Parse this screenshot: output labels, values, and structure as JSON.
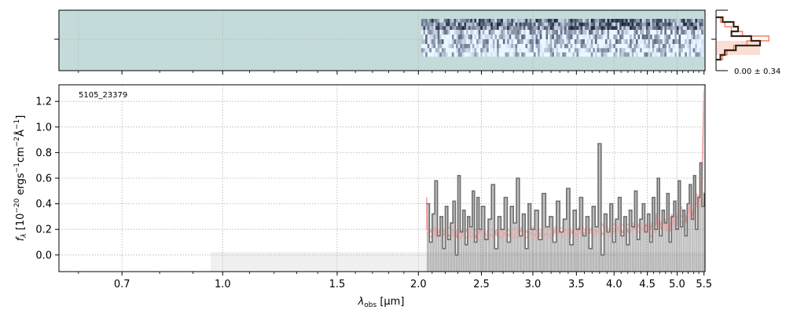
{
  "chart_data": [
    {
      "type": "heatmap",
      "panel": "2d-spectrum",
      "colormap": "bone_r",
      "background_color": "#c4dbdb",
      "data_start_x": 2.02,
      "x_range": [
        0.56,
        5.52
      ]
    },
    {
      "type": "histogram",
      "panel": "pixel-histogram",
      "annotation": "0.00 ± 0.34",
      "colors": {
        "data": "#3a241a",
        "model": "#f08060"
      }
    },
    {
      "type": "line",
      "panel": "1d-spectrum",
      "object_label": "5105_23379",
      "xlabel_main": "λ",
      "xlabel_sub": "obs",
      "xlabel_unit": " [μm]",
      "ylabel": "f_λ [10^-20 ergs^-1 cm^-2 Å^-1]",
      "x_scale": "log",
      "xlim": [
        0.56,
        5.52
      ],
      "ylim": [
        -0.13,
        1.33
      ],
      "xticks": [
        {
          "value": 0.7,
          "label": "0.7"
        },
        {
          "value": 1.0,
          "label": "1.0"
        },
        {
          "value": 1.5,
          "label": "1.5"
        },
        {
          "value": 2.0,
          "label": "2.0"
        },
        {
          "value": 2.5,
          "label": "2.5"
        },
        {
          "value": 3.0,
          "label": "3.0"
        },
        {
          "value": 3.5,
          "label": "3.5"
        },
        {
          "value": 4.0,
          "label": "4.0"
        },
        {
          "value": 4.5,
          "label": "4.5"
        },
        {
          "value": 5.0,
          "label": "5.0"
        },
        {
          "value": 5.5,
          "label": "5.5"
        }
      ],
      "yticks": [
        {
          "value": 0.0,
          "label": "0.0"
        },
        {
          "value": 0.2,
          "label": "0.2"
        },
        {
          "value": 0.4,
          "label": "0.4"
        },
        {
          "value": 0.6,
          "label": "0.6"
        },
        {
          "value": 0.8,
          "label": "0.8"
        },
        {
          "value": 1.0,
          "label": "1.0"
        },
        {
          "value": 1.2,
          "label": "1.2"
        }
      ],
      "grid": true,
      "series": [
        {
          "kind": "data-step",
          "color": "#808080",
          "x": [
            2.06,
            2.08,
            2.1,
            2.12,
            2.14,
            2.16,
            2.18,
            2.2,
            2.22,
            2.24,
            2.26,
            2.28,
            2.3,
            2.32,
            2.34,
            2.36,
            2.38,
            2.4,
            2.42,
            2.44,
            2.46,
            2.48,
            2.5,
            2.53,
            2.56,
            2.59,
            2.62,
            2.65,
            2.68,
            2.71,
            2.74,
            2.77,
            2.8,
            2.83,
            2.86,
            2.89,
            2.92,
            2.95,
            2.98,
            3.02,
            3.06,
            3.1,
            3.14,
            3.18,
            3.22,
            3.26,
            3.3,
            3.34,
            3.38,
            3.42,
            3.46,
            3.5,
            3.54,
            3.58,
            3.62,
            3.66,
            3.7,
            3.74,
            3.78,
            3.82,
            3.86,
            3.9,
            3.94,
            3.98,
            4.02,
            4.06,
            4.1,
            4.14,
            4.18,
            4.22,
            4.26,
            4.3,
            4.34,
            4.38,
            4.42,
            4.46,
            4.5,
            4.54,
            4.58,
            4.62,
            4.66,
            4.7,
            4.74,
            4.78,
            4.82,
            4.86,
            4.9,
            4.94,
            4.98,
            5.02,
            5.06,
            5.1,
            5.14,
            5.18,
            5.22,
            5.26,
            5.3,
            5.34,
            5.38,
            5.42,
            5.46,
            5.5
          ],
          "y": [
            0.4,
            0.1,
            0.32,
            0.58,
            0.15,
            0.3,
            0.05,
            0.38,
            0.12,
            0.25,
            0.42,
            0.0,
            0.62,
            0.18,
            0.35,
            0.08,
            0.3,
            0.22,
            0.5,
            0.1,
            0.45,
            0.2,
            0.38,
            0.12,
            0.28,
            0.55,
            0.05,
            0.3,
            0.2,
            0.45,
            0.1,
            0.38,
            0.25,
            0.6,
            0.15,
            0.32,
            0.05,
            0.4,
            0.2,
            0.35,
            0.12,
            0.48,
            0.22,
            0.3,
            0.1,
            0.42,
            0.18,
            0.28,
            0.52,
            0.08,
            0.35,
            0.2,
            0.45,
            0.15,
            0.3,
            0.05,
            0.38,
            0.22,
            0.87,
            0.0,
            0.32,
            0.18,
            0.4,
            0.1,
            0.28,
            0.45,
            0.15,
            0.3,
            0.08,
            0.35,
            0.22,
            0.5,
            0.12,
            0.28,
            0.4,
            0.18,
            0.32,
            0.1,
            0.45,
            0.2,
            0.6,
            0.15,
            0.35,
            0.25,
            0.48,
            0.1,
            0.3,
            0.42,
            0.2,
            0.58,
            0.22,
            0.35,
            0.15,
            0.4,
            0.55,
            0.28,
            0.62,
            0.2,
            0.45,
            0.72,
            0.38,
            0.48
          ]
        },
        {
          "kind": "model-envelope",
          "color": "#f4a0a0",
          "x": [
            2.06,
            2.5,
            3.0,
            3.5,
            4.0,
            4.5,
            5.0,
            5.3,
            5.45,
            5.48,
            5.5
          ],
          "y": [
            0.18,
            0.16,
            0.17,
            0.18,
            0.2,
            0.22,
            0.27,
            0.34,
            0.48,
            0.9,
            1.3
          ]
        }
      ]
    }
  ]
}
